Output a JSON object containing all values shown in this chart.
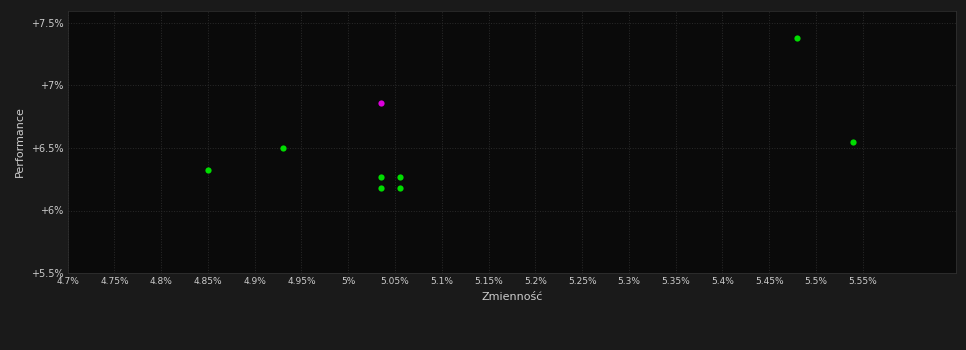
{
  "background_color": "#1a1a1a",
  "plot_bg_color": "#0a0a0a",
  "grid_color": "#2a2a2a",
  "text_color": "#cccccc",
  "xlabel": "Zmienność",
  "ylabel": "Performance",
  "xlim": [
    0.047,
    0.0565
  ],
  "ylim": [
    0.055,
    0.076
  ],
  "xticks": [
    0.047,
    0.0475,
    0.048,
    0.0485,
    0.049,
    0.0495,
    0.05,
    0.0505,
    0.051,
    0.0515,
    0.052,
    0.0525,
    0.053,
    0.0535,
    0.054,
    0.0545,
    0.055,
    0.0555
  ],
  "yticks": [
    0.055,
    0.06,
    0.065,
    0.07,
    0.075
  ],
  "ytick_labels": [
    "+5.5%",
    "+6%",
    "+6.5%",
    "+7%",
    "+7.5%"
  ],
  "xtick_labels": [
    "4.7%",
    "4.75%",
    "4.8%",
    "4.85%",
    "4.9%",
    "4.95%",
    "5%",
    "5.05%",
    "5.1%",
    "5.15%",
    "5.2%",
    "5.25%",
    "5.3%",
    "5.35%",
    "5.4%",
    "5.45%",
    "5.5%",
    "5.55%"
  ],
  "green_points": [
    [
      0.0485,
      0.0632
    ],
    [
      0.0493,
      0.065
    ],
    [
      0.05035,
      0.0627
    ],
    [
      0.05055,
      0.0627
    ],
    [
      0.05035,
      0.0618
    ],
    [
      0.05055,
      0.0618
    ],
    [
      0.0548,
      0.0738
    ],
    [
      0.0554,
      0.0655
    ]
  ],
  "magenta_points": [
    [
      0.05035,
      0.0686
    ]
  ],
  "point_size": 20,
  "green_color": "#00dd00",
  "magenta_color": "#dd00dd",
  "grid_linestyle": "dotted"
}
